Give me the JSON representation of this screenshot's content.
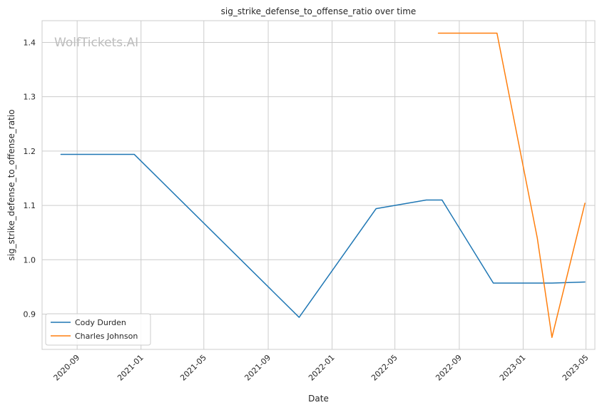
{
  "chart_data": {
    "type": "line",
    "title": "sig_strike_defense_to_offense_ratio over time",
    "xlabel": "Date",
    "ylabel": "sig_strike_defense_to_offense_ratio",
    "watermark": "WolfTickets.AI",
    "xlim": [
      "2020-06-26",
      "2023-05-18"
    ],
    "ylim": [
      0.835,
      1.44
    ],
    "x_ticks": [
      "2020-09-01",
      "2021-01-01",
      "2021-05-01",
      "2021-09-01",
      "2022-01-01",
      "2022-05-01",
      "2022-09-01",
      "2023-01-01",
      "2023-05-01"
    ],
    "x_tick_labels": [
      "2020-09",
      "2021-01",
      "2021-05",
      "2021-09",
      "2022-01",
      "2022-05",
      "2022-09",
      "2023-01",
      "2023-05"
    ],
    "y_ticks": [
      0.9,
      1.0,
      1.1,
      1.2,
      1.3,
      1.4
    ],
    "y_tick_labels": [
      "0.9",
      "1.0",
      "1.1",
      "1.2",
      "1.3",
      "1.4"
    ],
    "grid": true,
    "legend_position": "lower-left",
    "series": [
      {
        "name": "Cody Durden",
        "color": "#1f77b4",
        "points": [
          {
            "x": "2020-08-01",
            "y": 1.194
          },
          {
            "x": "2020-12-19",
            "y": 1.194
          },
          {
            "x": "2021-10-30",
            "y": 0.894
          },
          {
            "x": "2022-03-26",
            "y": 1.094
          },
          {
            "x": "2022-06-30",
            "y": 1.11
          },
          {
            "x": "2022-07-30",
            "y": 1.11
          },
          {
            "x": "2022-11-05",
            "y": 0.957
          },
          {
            "x": "2023-02-25",
            "y": 0.957
          },
          {
            "x": "2023-04-29",
            "y": 0.959
          }
        ]
      },
      {
        "name": "Charles Johnson",
        "color": "#ff7f0e",
        "points": [
          {
            "x": "2022-07-23",
            "y": 1.417
          },
          {
            "x": "2022-11-12",
            "y": 1.417
          },
          {
            "x": "2023-01-28",
            "y": 1.04
          },
          {
            "x": "2023-02-25",
            "y": 0.857
          },
          {
            "x": "2023-04-29",
            "y": 1.104
          }
        ]
      }
    ]
  }
}
